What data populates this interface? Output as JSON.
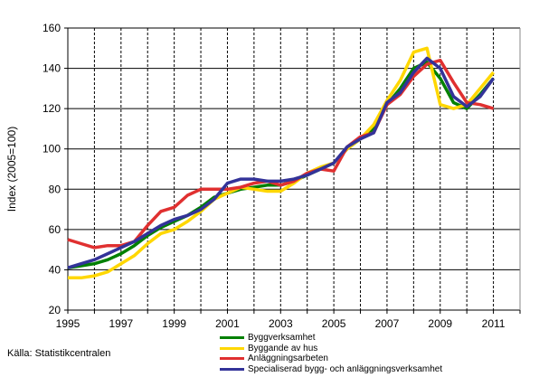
{
  "chart_data": {
    "type": "line",
    "title": "",
    "xlabel": "",
    "ylabel": "Index (2005=100)",
    "xlim": [
      1995,
      2012
    ],
    "ylim": [
      20,
      160
    ],
    "yticks": [
      20,
      40,
      60,
      80,
      100,
      120,
      140,
      160
    ],
    "xticks": [
      1995,
      1997,
      1999,
      2001,
      2003,
      2005,
      2007,
      2009,
      2011
    ],
    "grid": "horizontal solid, vertical dashed per year",
    "legend_position": "bottom",
    "x": [
      1995,
      1995.5,
      1996,
      1996.5,
      1997,
      1997.5,
      1998,
      1998.5,
      1999,
      1999.5,
      2000,
      2000.5,
      2001,
      2001.5,
      2002,
      2002.5,
      2003,
      2003.5,
      2004,
      2004.5,
      2005,
      2005.5,
      2006,
      2006.5,
      2007,
      2007.5,
      2008,
      2008.5,
      2009,
      2009.5,
      2010,
      2010.5,
      2011
    ],
    "series": [
      {
        "name": "Byggverksamhet",
        "color": "#008000",
        "values": [
          41,
          42,
          43,
          45,
          48,
          52,
          57,
          61,
          64,
          67,
          71,
          76,
          78,
          80,
          81,
          82,
          82,
          84,
          87,
          90,
          93,
          100,
          105,
          110,
          122,
          130,
          140,
          143,
          135,
          123,
          120,
          127,
          135
        ]
      },
      {
        "name": "Byggande av hus",
        "color": "#FFD700",
        "values": [
          36,
          36,
          37,
          39,
          43,
          47,
          53,
          58,
          60,
          64,
          69,
          75,
          78,
          81,
          80,
          79,
          79,
          83,
          88,
          91,
          93,
          100,
          105,
          112,
          124,
          134,
          148,
          150,
          122,
          120,
          122,
          130,
          138
        ]
      },
      {
        "name": "Anläggningsarbeten",
        "color": "#E03030",
        "values": [
          55,
          53,
          51,
          52,
          52,
          54,
          62,
          69,
          71,
          77,
          80,
          80,
          80,
          81,
          83,
          84,
          82,
          84,
          88,
          90,
          89,
          101,
          106,
          108,
          122,
          127,
          136,
          142,
          144,
          133,
          123,
          122,
          120
        ]
      },
      {
        "name": "Specialiserad bygg- och anläggningsverksamhet",
        "color": "#333399",
        "values": [
          41,
          43,
          45,
          48,
          51,
          54,
          58,
          62,
          65,
          67,
          70,
          75,
          83,
          85,
          85,
          84,
          84,
          85,
          87,
          90,
          93,
          101,
          105,
          108,
          123,
          128,
          138,
          145,
          140,
          126,
          121,
          126,
          135
        ]
      }
    ]
  },
  "source": "Källa: Statistikcentralen"
}
